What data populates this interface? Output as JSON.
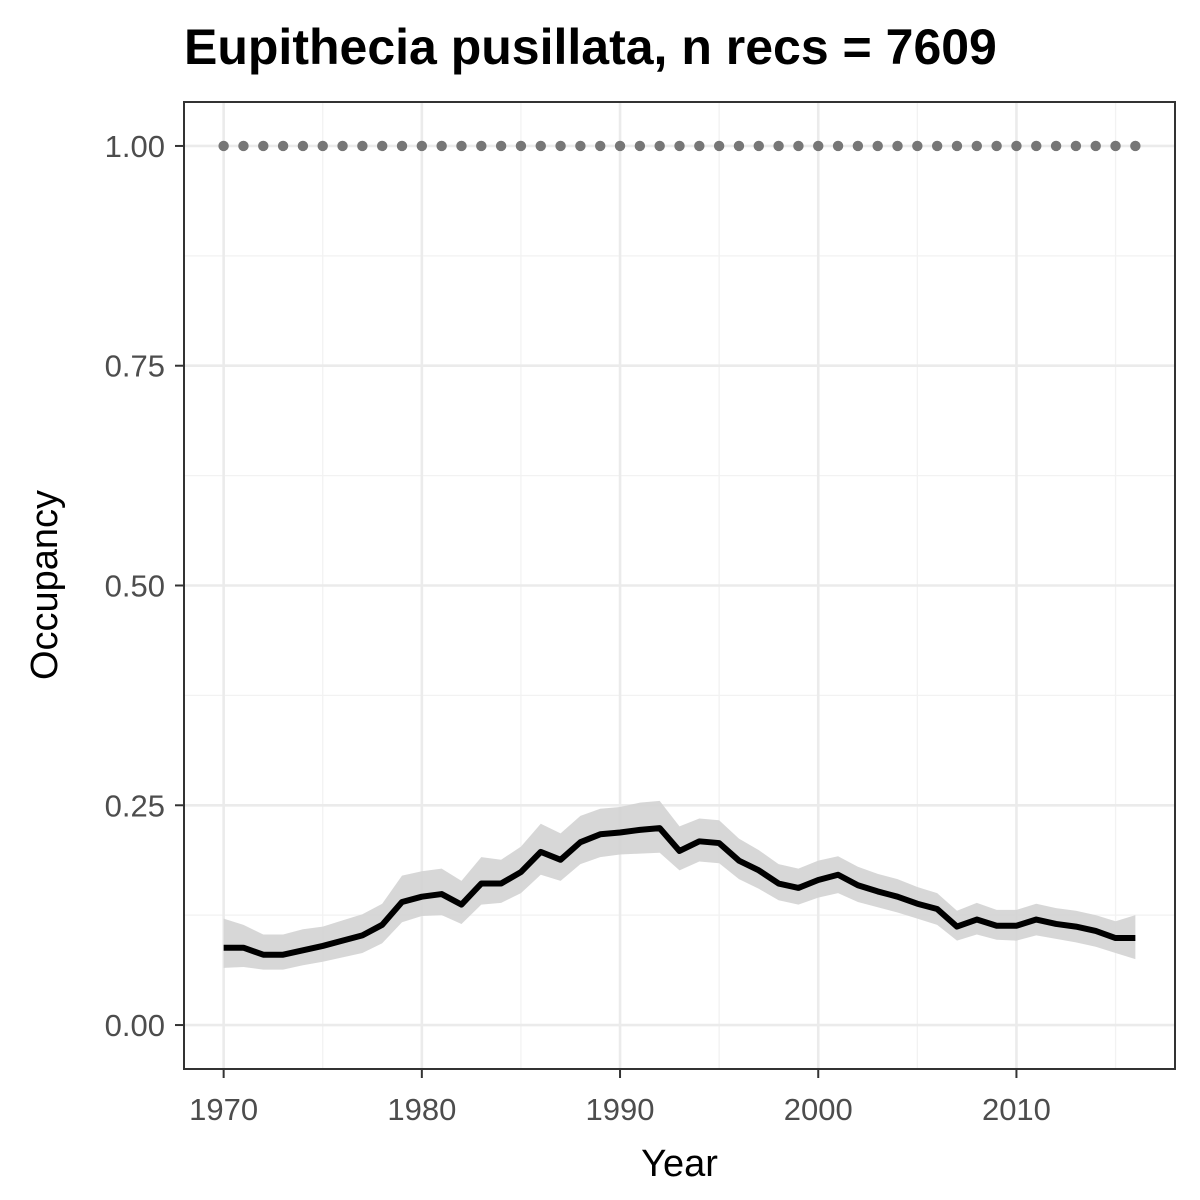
{
  "chart_data": {
    "type": "line",
    "title": "Eupithecia pusillata, n recs = 7609",
    "xlabel": "Year",
    "ylabel": "Occupancy",
    "xlim": [
      1968,
      2018
    ],
    "ylim": [
      -0.05,
      1.05
    ],
    "xticks": [
      1970,
      1980,
      1990,
      2000,
      2010
    ],
    "xtick_labels": [
      "1970",
      "1980",
      "1990",
      "2000",
      "2010"
    ],
    "yticks": [
      0,
      0.25,
      0.5,
      0.75,
      1
    ],
    "ytick_labels": [
      "0.00",
      "0.25",
      "0.50",
      "0.75",
      "1.00"
    ],
    "grid": true,
    "colors": {
      "line": "#000000",
      "ribbon": "#d3d3d3",
      "points": "#767676",
      "grid_major": "#ebebeb",
      "grid_minor": "#f2f2f2",
      "border": "#333333"
    },
    "x": [
      1970,
      1971,
      1972,
      1973,
      1974,
      1975,
      1976,
      1977,
      1978,
      1979,
      1980,
      1981,
      1982,
      1983,
      1984,
      1985,
      1986,
      1987,
      1988,
      1989,
      1990,
      1991,
      1992,
      1993,
      1994,
      1995,
      1996,
      1997,
      1998,
      1999,
      2000,
      2001,
      2002,
      2003,
      2004,
      2005,
      2006,
      2007,
      2008,
      2009,
      2010,
      2011,
      2012,
      2013,
      2014,
      2015,
      2016
    ],
    "series": [
      {
        "type": "line",
        "values": [
          0.088,
          0.088,
          0.08,
          0.08,
          0.085,
          0.09,
          0.096,
          0.102,
          0.114,
          0.14,
          0.146,
          0.149,
          0.137,
          0.161,
          0.161,
          0.174,
          0.197,
          0.188,
          0.208,
          0.217,
          0.219,
          0.222,
          0.224,
          0.198,
          0.209,
          0.207,
          0.187,
          0.176,
          0.161,
          0.156,
          0.165,
          0.171,
          0.159,
          0.152,
          0.146,
          0.138,
          0.132,
          0.112,
          0.12,
          0.113,
          0.113,
          0.12,
          0.115,
          0.112,
          0.107,
          0.099,
          0.099
        ]
      },
      {
        "type": "ribbon",
        "lower": [
          0.065,
          0.066,
          0.063,
          0.063,
          0.068,
          0.072,
          0.077,
          0.082,
          0.093,
          0.117,
          0.124,
          0.125,
          0.115,
          0.137,
          0.139,
          0.15,
          0.171,
          0.164,
          0.183,
          0.191,
          0.194,
          0.195,
          0.196,
          0.176,
          0.186,
          0.184,
          0.166,
          0.155,
          0.142,
          0.137,
          0.145,
          0.15,
          0.14,
          0.134,
          0.128,
          0.121,
          0.114,
          0.096,
          0.103,
          0.097,
          0.096,
          0.102,
          0.098,
          0.094,
          0.089,
          0.082,
          0.075
        ],
        "upper": [
          0.121,
          0.114,
          0.103,
          0.103,
          0.109,
          0.112,
          0.119,
          0.126,
          0.138,
          0.17,
          0.175,
          0.178,
          0.164,
          0.191,
          0.188,
          0.203,
          0.229,
          0.218,
          0.238,
          0.246,
          0.248,
          0.253,
          0.255,
          0.226,
          0.235,
          0.233,
          0.212,
          0.199,
          0.183,
          0.178,
          0.187,
          0.192,
          0.18,
          0.172,
          0.166,
          0.157,
          0.15,
          0.13,
          0.139,
          0.131,
          0.131,
          0.138,
          0.133,
          0.13,
          0.125,
          0.118,
          0.125
        ]
      },
      {
        "type": "points",
        "values": [
          1,
          1,
          1,
          1,
          1,
          1,
          1,
          1,
          1,
          1,
          1,
          1,
          1,
          1,
          1,
          1,
          1,
          1,
          1,
          1,
          1,
          1,
          1,
          1,
          1,
          1,
          1,
          1,
          1,
          1,
          1,
          1,
          1,
          1,
          1,
          1,
          1,
          1,
          1,
          1,
          1,
          1,
          1,
          1,
          1,
          1,
          1
        ]
      }
    ]
  }
}
